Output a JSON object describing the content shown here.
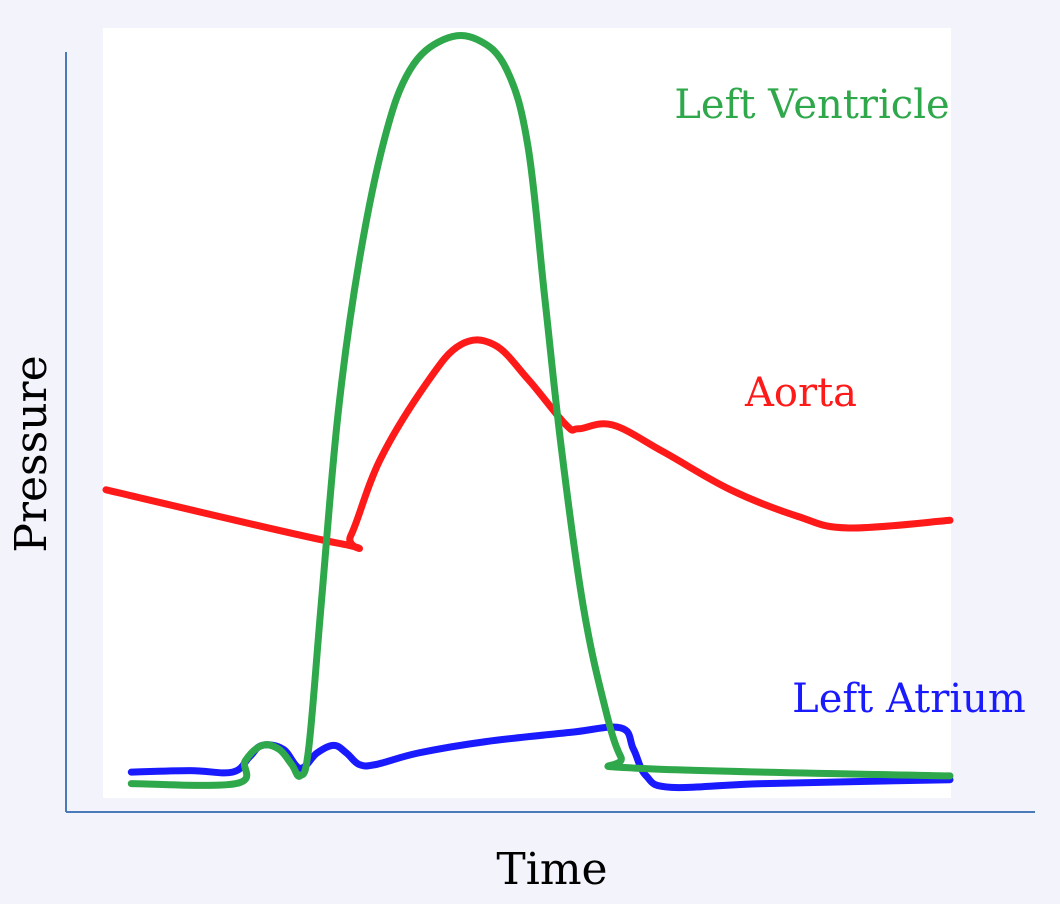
{
  "chart_data": {
    "type": "line",
    "title": "",
    "xlabel": "Time",
    "ylabel": "Pressure",
    "xlim": [
      0,
      100
    ],
    "ylim": [
      0,
      100
    ],
    "grid": false,
    "legend": "inline labels",
    "series": [
      {
        "name": "Left Ventricle",
        "color": "#2ea84a",
        "points": [
          [
            3,
            1.5
          ],
          [
            15.4,
            1.5
          ],
          [
            16.5,
            4.5
          ],
          [
            18.5,
            6.5
          ],
          [
            20.5,
            6
          ],
          [
            22,
            4
          ],
          [
            23,
            2.5
          ],
          [
            24,
            6
          ],
          [
            25.5,
            25
          ],
          [
            27.5,
            50
          ],
          [
            30,
            70
          ],
          [
            33,
            86
          ],
          [
            36,
            95
          ],
          [
            40,
            99
          ],
          [
            44,
            99
          ],
          [
            47.5,
            95
          ],
          [
            50,
            85
          ],
          [
            52,
            65
          ],
          [
            54,
            45
          ],
          [
            56.5,
            25
          ],
          [
            59,
            12
          ],
          [
            61,
            5
          ],
          [
            63,
            3.5
          ],
          [
            100,
            2.5
          ]
        ]
      },
      {
        "name": "Aorta",
        "color": "#ff1a1a",
        "points": [
          [
            0,
            40
          ],
          [
            27.5,
            33
          ],
          [
            29,
            34
          ],
          [
            32.5,
            44
          ],
          [
            38,
            54
          ],
          [
            42,
            59
          ],
          [
            46,
            59
          ],
          [
            50,
            54.5
          ],
          [
            54.5,
            48.5
          ],
          [
            56,
            48
          ],
          [
            60,
            48.5
          ],
          [
            66,
            45
          ],
          [
            74,
            40
          ],
          [
            82,
            36.5
          ],
          [
            88,
            35
          ],
          [
            100,
            36
          ]
        ]
      },
      {
        "name": "Left Atrium",
        "color": "#1a1aff",
        "points": [
          [
            3,
            3
          ],
          [
            10,
            3.2
          ],
          [
            15,
            3
          ],
          [
            17,
            5
          ],
          [
            18.5,
            6.5
          ],
          [
            21,
            6
          ],
          [
            23,
            3.5
          ],
          [
            25,
            5.5
          ],
          [
            27,
            6.5
          ],
          [
            28.5,
            5.5
          ],
          [
            30,
            4
          ],
          [
            32,
            4
          ],
          [
            37,
            5.5
          ],
          [
            45,
            7
          ],
          [
            55,
            8.2
          ],
          [
            61,
            8.8
          ],
          [
            62.5,
            6
          ],
          [
            64,
            2.5
          ],
          [
            67,
            1
          ],
          [
            78,
            1.5
          ],
          [
            100,
            2
          ]
        ]
      }
    ],
    "labels": {
      "left_ventricle": "Left Ventricle",
      "aorta": "Aorta",
      "left_atrium": "Left Atrium"
    }
  }
}
